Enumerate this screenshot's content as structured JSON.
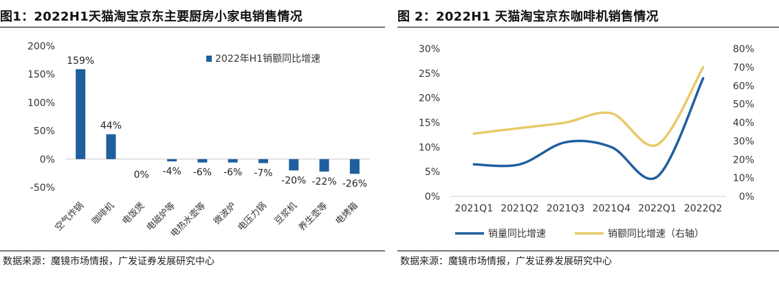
{
  "left_panel": {
    "title": "图1：2022H1天猫淘宝京东主要厨房小家电销售情况",
    "source": "数据来源：魔镜市场情报，广发证券发展研究中心"
  },
  "right_panel": {
    "title": "图 2：2022H1 天猫淘宝京东咖啡机销售情况",
    "source": "数据来源：魔镜市场情报，广发证券发展研究中心"
  },
  "chart_data": [
    {
      "type": "bar",
      "title": "图1：2022H1天猫淘宝京东主要厨房小家电销售情况",
      "categories": [
        "空气炸锅",
        "咖啡机",
        "电饭煲",
        "电磁炉等",
        "电热水壶等",
        "微波炉",
        "电压力锅",
        "豆浆机",
        "养生壶等",
        "电烤箱"
      ],
      "series": [
        {
          "name": "2022年H1销额同比增速",
          "values": [
            159,
            44,
            0,
            -4,
            -6,
            -6,
            -7,
            -20,
            -22,
            -26
          ],
          "color": "#1F5F9E"
        }
      ],
      "data_labels": [
        "159%",
        "44%",
        "0%",
        "-4%",
        "-6%",
        "-6%",
        "-7%",
        "-20%",
        "-22%",
        "-26%"
      ],
      "ylim": [
        -50,
        200
      ],
      "yticks": [
        -50,
        0,
        50,
        100,
        150,
        200
      ],
      "ytick_labels": [
        "-50%",
        "0%",
        "50%",
        "100%",
        "150%",
        "200%"
      ],
      "legend": "top-right",
      "grid": false
    },
    {
      "type": "line",
      "title": "图 2：2022H1 天猫淘宝京东咖啡机销售情况",
      "categories": [
        "2021Q1",
        "2021Q2",
        "2021Q3",
        "2021Q4",
        "2022Q1",
        "2022Q2"
      ],
      "series": [
        {
          "name": "销量同比增速",
          "axis": "left",
          "values": [
            6.5,
            6.5,
            11,
            10,
            4,
            24
          ],
          "color": "#1F5F9E"
        },
        {
          "name": "销额同比增速（右轴）",
          "axis": "right",
          "values": [
            34,
            37,
            40,
            45,
            28,
            70
          ],
          "color": "#E8C968"
        }
      ],
      "ylim_left": [
        0,
        30
      ],
      "yticks_left": [
        0,
        5,
        10,
        15,
        20,
        25,
        30
      ],
      "ytick_labels_left": [
        "0%",
        "5%",
        "10%",
        "15%",
        "20%",
        "25%",
        "30%"
      ],
      "ylim_right": [
        0,
        80
      ],
      "yticks_right": [
        0,
        10,
        20,
        30,
        40,
        50,
        60,
        70,
        80
      ],
      "ytick_labels_right": [
        "0%",
        "10%",
        "20%",
        "30%",
        "40%",
        "50%",
        "60%",
        "70%",
        "80%"
      ],
      "legend": "bottom",
      "grid": false
    }
  ]
}
